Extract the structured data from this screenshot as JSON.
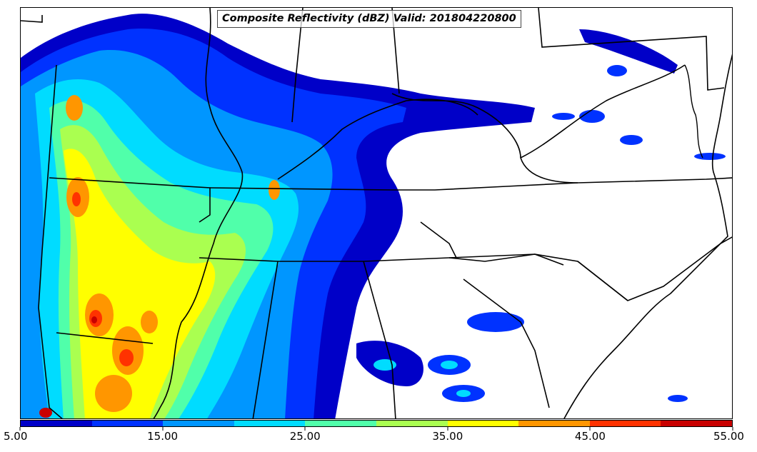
{
  "title": "Composite Reflectivity (dBZ) Valid: 201804220800",
  "colorbar": {
    "tick_labels": [
      "5.00",
      "15.00",
      "25.00",
      "35.00",
      "45.00",
      "55.00"
    ],
    "bins": [
      {
        "min": 5,
        "max": 10,
        "color": "#0000c8"
      },
      {
        "min": 10,
        "max": 15,
        "color": "#0032ff"
      },
      {
        "min": 15,
        "max": 20,
        "color": "#0096ff"
      },
      {
        "min": 20,
        "max": 25,
        "color": "#00dcff"
      },
      {
        "min": 25,
        "max": 30,
        "color": "#50ffaa"
      },
      {
        "min": 30,
        "max": 35,
        "color": "#aaff50"
      },
      {
        "min": 35,
        "max": 40,
        "color": "#ffff00"
      },
      {
        "min": 40,
        "max": 45,
        "color": "#ff9600"
      },
      {
        "min": 45,
        "max": 50,
        "color": "#ff3200"
      },
      {
        "min": 50,
        "max": 55,
        "color": "#c80000"
      }
    ]
  }
}
